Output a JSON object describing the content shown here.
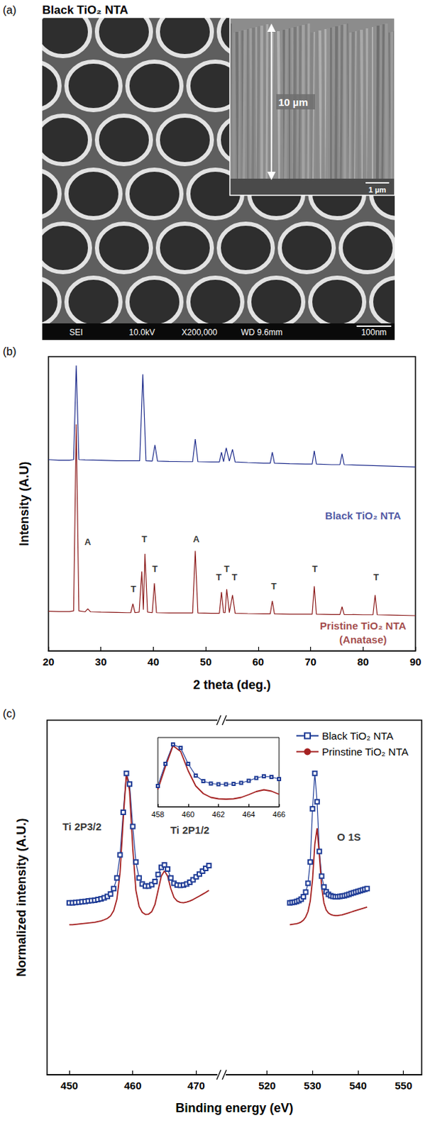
{
  "panel_a": {
    "letter": "(a)",
    "title": "Black TiO₂ NTA",
    "inset_label": "10 µm",
    "inset_scale_bar": "1 µm",
    "info_bar": [
      "SEI",
      "10.0kV",
      "X200,000",
      "WD 9.6mm",
      "100nm"
    ]
  },
  "chart_data": [
    {
      "panel": "(b)",
      "type": "line",
      "x_label": "2 theta (deg.)",
      "y_label": "Intensity (A.U)",
      "xlim": [
        20,
        90
      ],
      "xticks": [
        20,
        30,
        40,
        50,
        60,
        70,
        80,
        90
      ],
      "ylim": [
        0,
        100
      ],
      "tick_labels": "x",
      "series": [
        {
          "color": "#1f2d8c",
          "x": [
            20,
            22,
            24,
            24.8,
            25.3,
            25.8,
            27,
            30,
            33,
            35,
            37.4,
            38.0,
            38.6,
            39.8,
            40.3,
            40.8,
            43,
            46,
            47.5,
            48.0,
            48.5,
            51,
            52.6,
            53.0,
            53.4,
            53.9,
            54.5,
            55.1,
            55.6,
            58,
            61,
            62.3,
            62.7,
            63.1,
            66,
            69,
            70.3,
            70.7,
            71.1,
            74,
            75.6,
            76.0,
            76.4,
            80,
            85,
            90
          ],
          "values": [
            65,
            64.8,
            64.8,
            65,
            97,
            65,
            64.9,
            64.8,
            64.6,
            64.6,
            64.6,
            94,
            64.6,
            64.5,
            70,
            64.5,
            64.4,
            64.3,
            64.3,
            72,
            64.3,
            64.2,
            64.2,
            67.5,
            64.3,
            69,
            64.5,
            68.5,
            64.2,
            64,
            63.8,
            63.8,
            67.5,
            63.8,
            63.6,
            63.5,
            63.5,
            68,
            63.5,
            63.3,
            63.3,
            67,
            63.3,
            63.1,
            62.8,
            62.5
          ]
        },
        {
          "color": "#8b1a1a",
          "x": [
            20,
            22,
            24,
            24.8,
            25.3,
            25.8,
            27,
            27.5,
            28,
            30,
            33,
            35,
            35.7,
            36.1,
            36.5,
            37.3,
            37.8,
            38.1,
            38.4,
            38.9,
            39.8,
            40.2,
            40.6,
            43,
            46,
            47.5,
            48.0,
            48.5,
            51,
            52.6,
            53.0,
            53.4,
            53.7,
            54.0,
            54.5,
            55.1,
            55.6,
            58,
            61,
            62.3,
            62.7,
            63.1,
            66,
            69,
            70.3,
            70.7,
            71.1,
            74,
            75.6,
            76.0,
            76.4,
            80,
            81.9,
            82.3,
            82.7,
            85,
            90
          ],
          "values": [
            13.5,
            13.4,
            13.4,
            13.6,
            77,
            13.6,
            13.3,
            14.3,
            13.3,
            13.2,
            13.1,
            13,
            13,
            16,
            13,
            13.2,
            27,
            14,
            33,
            13.2,
            13,
            23,
            13,
            12.9,
            12.9,
            12.9,
            34,
            12.9,
            12.8,
            12.8,
            20,
            13,
            13,
            21,
            13,
            19,
            12.8,
            12.7,
            12.6,
            12.6,
            17,
            12.6,
            12.5,
            12.5,
            12.5,
            22,
            12.5,
            12.4,
            12.4,
            15,
            12.4,
            12.3,
            12.3,
            19,
            12.3,
            12.2,
            12
          ]
        }
      ],
      "annotations": [
        {
          "text": "A",
          "x": 27.5,
          "y": 37
        },
        {
          "text": "T",
          "x": 36.2,
          "y": 21
        },
        {
          "text": "T",
          "x": 38.3,
          "y": 38
        },
        {
          "text": "T",
          "x": 40.3,
          "y": 28
        },
        {
          "text": "A",
          "x": 48.2,
          "y": 38
        },
        {
          "text": "T",
          "x": 52.5,
          "y": 25
        },
        {
          "text": "T",
          "x": 54.0,
          "y": 28
        },
        {
          "text": "T",
          "x": 55.5,
          "y": 25
        },
        {
          "text": "T",
          "x": 63.0,
          "y": 22
        },
        {
          "text": "T",
          "x": 70.8,
          "y": 28
        },
        {
          "text": "T",
          "x": 82.5,
          "y": 25
        },
        {
          "text": "Black TiO₂ NTA",
          "x": 80,
          "y": 46,
          "color": "#1f2d8c"
        },
        {
          "text": "Pristine TiO₂ NTA",
          "x": 80,
          "y": 8.5,
          "color": "#8b1a1a"
        },
        {
          "text": "(Anatase)",
          "x": 80,
          "y": 4,
          "color": "#8b1a1a"
        }
      ]
    },
    {
      "panel": "(c)",
      "type": "line",
      "x_label": "Binding energy (eV)",
      "y_label": "Normalized intensity (A.U.)",
      "ylim": [
        0,
        100
      ],
      "tick_labels": "x",
      "legend": "upper right",
      "series": [
        {
          "name": "Black TiO₂ NTA",
          "color": "#1f3c96",
          "marker": "square",
          "line_style": "solid"
        },
        {
          "name": "Prinstine TiO₂ NTA",
          "color": "#a52222",
          "marker": "none",
          "line_style": "solid"
        }
      ],
      "segments": [
        {
          "xlim": [
            446.5,
            474
          ],
          "xticks": [
            450,
            460,
            470
          ],
          "x": [
            450,
            450.5,
            451,
            451.5,
            452,
            452.5,
            453,
            453.5,
            454,
            454.5,
            455,
            455.5,
            456,
            456.5,
            457,
            457.5,
            458,
            458.5,
            459,
            459.5,
            460,
            460.5,
            461,
            461.5,
            462,
            462.5,
            463,
            463.5,
            464,
            464.5,
            465,
            465.5,
            466,
            466.5,
            467,
            467.5,
            468,
            468.5,
            469,
            469.5,
            470,
            470.5,
            471,
            471.5,
            472
          ],
          "series_values": [
            [
              48.5,
              48.5,
              48.6,
              48.7,
              48.8,
              48.9,
              49,
              49.1,
              49.2,
              49.4,
              49.6,
              49.9,
              50.3,
              51,
              52.5,
              55.5,
              62,
              74,
              85,
              82,
              70,
              60,
              55.5,
              53.8,
              53.2,
              53.2,
              53.6,
              54.5,
              56.5,
              58.5,
              59.2,
              58,
              55.5,
              54,
              53.5,
              53.4,
              53.5,
              53.8,
              54.3,
              55,
              55.8,
              56.6,
              57.4,
              58.2,
              59
            ],
            [
              42.3,
              42.3,
              42.4,
              42.5,
              42.6,
              42.7,
              42.8,
              42.9,
              43,
              43.2,
              43.4,
              43.7,
              44.1,
              44.8,
              46.3,
              49.5,
              57,
              72,
              85,
              80,
              64,
              52,
              47.5,
              45.8,
              45.2,
              45.3,
              46,
              48,
              52,
              56,
              57.5,
              56,
              52.5,
              50,
              49,
              48.6,
              48.5,
              48.7,
              49,
              49.4,
              49.9,
              50.4,
              50.9,
              51.4,
              52
            ]
          ]
        },
        {
          "xlim": [
            510,
            554
          ],
          "xticks": [
            520,
            530,
            540,
            550
          ],
          "x": [
            525,
            525.5,
            526,
            526.5,
            527,
            527.5,
            528,
            528.5,
            529,
            529.5,
            530,
            530.5,
            531,
            531.5,
            532,
            532.5,
            533,
            533.5,
            534,
            534.5,
            535,
            535.5,
            536,
            536.5,
            537,
            537.5,
            538,
            538.5,
            539,
            539.5,
            540,
            540.5,
            541,
            541.5,
            542
          ],
          "series_values": [
            [
              48.5,
              48.6,
              48.7,
              48.9,
              49.1,
              49.5,
              50.2,
              51.5,
              54,
              60,
              75,
              85,
              77,
              63,
              56,
              53,
              51.6,
              50.9,
              50.5,
              50.3,
              50.2,
              50.2,
              50.3,
              50.4,
              50.5,
              50.7,
              50.9,
              51.1,
              51.3,
              51.5,
              51.7,
              51.9,
              52.1,
              52.3,
              52.5
            ],
            [
              42.3,
              42.4,
              42.5,
              42.6,
              42.8,
              43.1,
              43.6,
              44.5,
              46,
              49,
              55,
              65,
              69.5,
              62,
              53,
              48.5,
              46.5,
              45.6,
              45.2,
              45,
              44.9,
              44.9,
              45,
              45.1,
              45.3,
              45.5,
              45.7,
              45.9,
              46.1,
              46.3,
              46.5,
              46.7,
              46.9,
              47.1,
              47.3
            ]
          ]
        }
      ],
      "annotations": [
        {
          "text": "Ti 2P3/2",
          "x": 452,
          "y": 70,
          "segment": 0
        },
        {
          "text": "Ti 2P1/2",
          "x": 469,
          "y": 69,
          "segment": 0
        },
        {
          "text": "O 1S",
          "x": 538,
          "y": 67,
          "segment": 1
        }
      ],
      "inset": {
        "xlim": [
          458,
          466
        ],
        "xticks": [
          458,
          460,
          462,
          464,
          466
        ],
        "ylim": [
          0,
          100
        ],
        "x": [
          458,
          458.5,
          459,
          459.5,
          460,
          460.5,
          461,
          461.5,
          462,
          462.5,
          463,
          463.5,
          464,
          464.5,
          465,
          465.5,
          466
        ],
        "series_values": [
          [
            30,
            62,
            90,
            85,
            62,
            45,
            37,
            33.5,
            32.5,
            32.5,
            33,
            34.5,
            37.5,
            41.5,
            44,
            43,
            40
          ],
          [
            25,
            58,
            88,
            80,
            52,
            30,
            19,
            13.5,
            11.5,
            11,
            11.5,
            13.5,
            17.5,
            22,
            24.5,
            22.5,
            18
          ]
        ]
      }
    }
  ]
}
